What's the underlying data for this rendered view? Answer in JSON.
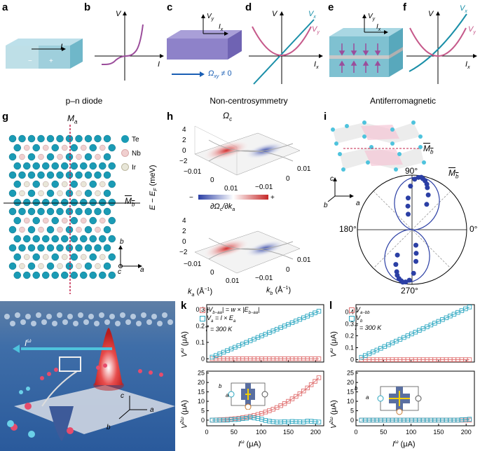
{
  "panel_letters": [
    "a",
    "b",
    "c",
    "d",
    "e",
    "f",
    "g",
    "h",
    "i",
    "j",
    "k",
    "l"
  ],
  "captions": {
    "ab": "p–n diode",
    "cd": "Non-centrosymmetry",
    "ef": "Antiferromagnetic"
  },
  "panel_a": {
    "current": "I",
    "minus": "−",
    "plus": "+"
  },
  "panel_b": {
    "yaxis": "V",
    "xaxis": "I"
  },
  "panel_c": {
    "vy": "V",
    "vy_sub": "y",
    "ix": "I",
    "ix_sub": "x",
    "omega": "Ω",
    "omega_sub": "xy",
    "omega_rel": " ≠ 0"
  },
  "panel_d": {
    "yaxis": "V",
    "xaxis": "I",
    "xaxis_sub": "x",
    "vx": "V",
    "vx_sub": "x",
    "vy": "V",
    "vy_sub": "y"
  },
  "panel_e": {
    "vy": "V",
    "vy_sub": "y",
    "ix": "I",
    "ix_sub": "x"
  },
  "panel_f": {
    "yaxis": "V",
    "xaxis": "I",
    "xaxis_sub": "x",
    "vx": "V",
    "vx_sub": "x",
    "vy": "V",
    "vy_sub": "y"
  },
  "panel_g": {
    "mirror_a": "M",
    "mirror_a_sub": "a",
    "mirror_b": "M",
    "mirror_b_sub": "b",
    "legend": [
      {
        "label": "Te",
        "color": "#1a9bb5"
      },
      {
        "label": "Nb",
        "color": "#f0cfcf"
      },
      {
        "label": "Ir",
        "color": "#e8e6d8"
      }
    ],
    "axis_b": "b",
    "axis_a": "a",
    "axis_c": "c"
  },
  "panel_h": {
    "title": "Ω",
    "title_sub": "c",
    "ylabel": "E − E",
    "ylabel_sub": "F",
    "ylabel_unit": " (meV)",
    "colorbar_label": "∂Ω",
    "colorbar_label_tail": "c",
    "colorbar_label_den": "/∂k",
    "colorbar_label_den_sub": "a",
    "colorbar_minus": "−",
    "colorbar_plus": "+",
    "z_ticks_top": [
      "4",
      "2",
      "0",
      "−2"
    ],
    "z_ticks_bottom": [
      "4",
      "2",
      "0",
      "−2"
    ],
    "ka_ticks": [
      "−0.01",
      "0",
      "0.01"
    ],
    "kb_ticks": [
      "0.01",
      "0",
      "−0.01"
    ],
    "ka_label": "k",
    "ka_sub": "a",
    "ka_unit": " (Å",
    "kb_label": "k",
    "kb_sub": "b",
    "kb_unit": " (Å",
    "inv": "−1",
    "close": ")"
  },
  "panel_i": {
    "mirror": "M",
    "mirror_sub": "b",
    "mirror2": "M",
    "mirror2_sub": "b",
    "angle_labels": [
      "90°",
      "0°",
      "270°",
      "180°"
    ],
    "axis_c": "c",
    "axis_b": "b",
    "axis_a": "a"
  },
  "panel_j": {
    "label": "I",
    "label_sup": "ω",
    "axis_c": "c",
    "axis_a": "a",
    "axis_b": "b"
  },
  "panel_k": {
    "top_ylabel": "V",
    "top_ylabel_sup": "ω",
    "top_unit": " (μA)",
    "bottom_ylabel": "V",
    "bottom_ylabel_sup": "2ω",
    "bottom_unit": " (μA)",
    "xlabel": "I",
    "xlabel_sup": "ω",
    "xunit": " (μA)",
    "legend1": "|V",
    "legend1_sub": "b−aa",
    "legend1_tail": "| = w × |E",
    "legend1_sub2": "b−aa",
    "legend1_end": "|",
    "legend2": "V",
    "legend2_sub": "a",
    "legend2_tail": " = l × E",
    "legend2_sub2": "a",
    "temp": "T = 300 K",
    "top_yticks": [
      "0",
      "0.1",
      "0.2",
      "0.3"
    ],
    "bottom_yticks": [
      "0",
      "5",
      "10",
      "15",
      "20",
      "25"
    ],
    "xticks": [
      "0",
      "50",
      "100",
      "150",
      "200"
    ],
    "inset_axes": {
      "b": "b",
      "a": "a"
    }
  },
  "panel_l": {
    "top_ylabel": "V",
    "top_ylabel_sup": "ω",
    "top_unit": " (μA)",
    "bottom_ylabel": "V",
    "bottom_ylabel_sup": "2ω",
    "bottom_unit": " (μA)",
    "xlabel": "I",
    "xlabel_sup": "ω",
    "xunit": " (μA)",
    "legend1": "V",
    "legend1_sub": "a−bb",
    "legend2": "V",
    "legend2_sub": "b",
    "temp": "T = 300 K",
    "top_yticks": [
      "0",
      "0.1",
      "0.2",
      "0.3",
      "0.4"
    ],
    "bottom_yticks": [
      "0",
      "5",
      "10",
      "15",
      "20",
      "25"
    ],
    "xticks": [
      "0",
      "50",
      "100",
      "150",
      "200"
    ],
    "inset_axes": {
      "b": "b",
      "a": "a"
    }
  },
  "chart_data": [
    {
      "type": "scatter",
      "id": "k-top",
      "x": [
        10,
        17,
        24,
        31,
        38,
        45,
        52,
        59,
        66,
        73,
        80,
        87,
        94,
        101,
        108,
        115,
        122,
        129,
        136,
        143,
        150,
        157,
        164,
        171,
        178,
        185,
        192,
        199,
        206
      ],
      "series": [
        {
          "name": "|Vb−aa| = w × |Eb−aa|",
          "color": "#e07070",
          "values": [
            0,
            0,
            0,
            0,
            0,
            0,
            0,
            0,
            0,
            0,
            0,
            0,
            0,
            0,
            0,
            0,
            0,
            0,
            0,
            0,
            0,
            0,
            0,
            0,
            0,
            0,
            0,
            0,
            0
          ]
        },
        {
          "name": "Va = l × Ea",
          "color": "#2aa6c0",
          "values": [
            0.01,
            0.02,
            0.03,
            0.04,
            0.05,
            0.06,
            0.07,
            0.08,
            0.09,
            0.1,
            0.11,
            0.12,
            0.13,
            0.14,
            0.15,
            0.16,
            0.17,
            0.18,
            0.19,
            0.2,
            0.21,
            0.22,
            0.23,
            0.24,
            0.25,
            0.26,
            0.27,
            0.28,
            0.29
          ]
        }
      ],
      "xlim": [
        0,
        215
      ],
      "ylim": [
        -0.02,
        0.33
      ]
    },
    {
      "type": "scatter",
      "id": "k-bottom",
      "x": [
        10,
        17,
        24,
        31,
        38,
        45,
        52,
        59,
        66,
        73,
        80,
        87,
        94,
        101,
        108,
        115,
        122,
        129,
        136,
        143,
        150,
        157,
        164,
        171,
        178,
        185,
        192,
        199,
        206
      ],
      "series": [
        {
          "name": "|Vb−aa|",
          "color": "#e07070",
          "values": [
            0,
            0.1,
            0.2,
            0.3,
            0.4,
            0.6,
            0.8,
            1.0,
            1.3,
            1.6,
            2.0,
            2.5,
            3.0,
            3.6,
            4.3,
            5.0,
            5.8,
            6.7,
            7.7,
            8.8,
            10.0,
            11.3,
            12.6,
            14.0,
            15.5,
            17.1,
            18.8,
            20.6,
            22.5
          ]
        },
        {
          "name": "Va",
          "color": "#2aa6c0",
          "values": [
            0,
            0,
            0,
            0,
            0,
            0.3,
            0.3,
            0.5,
            0.8,
            1.0,
            1.5,
            1.2,
            0.9,
            0.5,
            -0.2,
            -0.5,
            -0.8,
            -1.0,
            -1.0,
            -0.8,
            -1.0,
            -0.7,
            -0.8,
            -0.9,
            -1.0,
            -0.5,
            -0.6,
            -0.8,
            -1.0
          ]
        }
      ],
      "xlim": [
        0,
        215
      ],
      "ylim": [
        -3,
        26
      ]
    },
    {
      "type": "scatter",
      "id": "l-top",
      "x": [
        10,
        17,
        24,
        31,
        38,
        45,
        52,
        59,
        66,
        73,
        80,
        87,
        94,
        101,
        108,
        115,
        122,
        129,
        136,
        143,
        150,
        157,
        164,
        171,
        178,
        185,
        192,
        199,
        206
      ],
      "series": [
        {
          "name": "Va−bb",
          "color": "#e07070",
          "values": [
            0,
            0,
            0,
            0,
            0,
            0,
            0,
            0,
            0,
            0,
            0,
            0,
            0,
            0,
            0,
            0,
            0,
            0,
            0,
            0,
            0,
            0,
            0,
            0,
            0,
            0,
            0,
            0,
            0
          ]
        },
        {
          "name": "Vb",
          "color": "#2aa6c0",
          "values": [
            0.02,
            0.035,
            0.05,
            0.065,
            0.08,
            0.095,
            0.11,
            0.125,
            0.14,
            0.155,
            0.17,
            0.185,
            0.2,
            0.215,
            0.23,
            0.245,
            0.26,
            0.275,
            0.29,
            0.305,
            0.32,
            0.335,
            0.35,
            0.365,
            0.38,
            0.395,
            0.41,
            0.425,
            0.44
          ]
        }
      ],
      "xlim": [
        0,
        215
      ],
      "ylim": [
        -0.02,
        0.46
      ]
    },
    {
      "type": "scatter",
      "id": "l-bottom",
      "x": [
        10,
        17,
        24,
        31,
        38,
        45,
        52,
        59,
        66,
        73,
        80,
        87,
        94,
        101,
        108,
        115,
        122,
        129,
        136,
        143,
        150,
        157,
        164,
        171,
        178,
        185,
        192,
        199,
        206
      ],
      "series": [
        {
          "name": "Va−bb",
          "color": "#e07070",
          "values": [
            0,
            0,
            0,
            0,
            0,
            0,
            0,
            0,
            0,
            0,
            0,
            0,
            0,
            0,
            0,
            0,
            0,
            0,
            0,
            0,
            0,
            0,
            0,
            0,
            0,
            0,
            0,
            0,
            0
          ]
        },
        {
          "name": "Vb",
          "color": "#2aa6c0",
          "values": [
            0,
            0,
            0,
            0,
            0,
            0,
            0,
            0,
            0,
            0,
            0,
            0,
            0,
            0,
            0,
            0,
            0,
            0,
            0,
            0,
            0,
            0,
            0,
            0,
            0,
            0,
            0.2,
            0.3,
            0.5
          ]
        }
      ],
      "xlim": [
        0,
        215
      ],
      "ylim": [
        -3,
        26
      ]
    },
    {
      "type": "scatter",
      "id": "i-polar",
      "angles_deg": [
        60,
        65,
        70,
        72,
        75,
        78,
        80,
        83,
        87,
        92,
        97,
        100,
        104,
        240,
        245,
        250,
        252,
        255,
        258,
        260,
        263,
        267,
        272,
        277,
        280,
        284
      ],
      "radius_frac": [
        0.55,
        0.72,
        0.84,
        0.9,
        0.95,
        0.98,
        1.0,
        0.99,
        0.95,
        0.82,
        0.6,
        0.45,
        0.3,
        0.55,
        0.72,
        0.84,
        0.9,
        0.95,
        0.98,
        1.0,
        0.99,
        0.95,
        0.82,
        0.6,
        0.45,
        0.3
      ]
    }
  ]
}
